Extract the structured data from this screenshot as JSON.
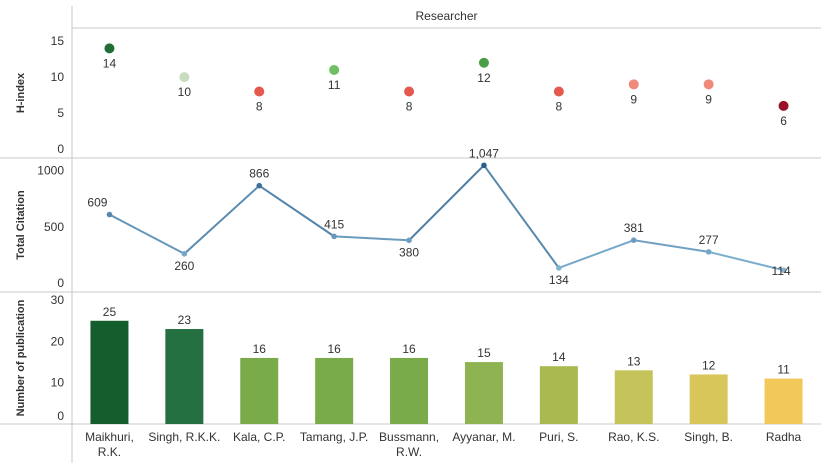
{
  "chart_data": {
    "type": "combined",
    "header": "Researcher",
    "categories": [
      [
        "Maikhuri,",
        "R.K."
      ],
      [
        "Singh, R.K.K."
      ],
      [
        "Kala, C.P."
      ],
      [
        "Tamang, J.P."
      ],
      [
        "Bussmann,",
        "R.W."
      ],
      [
        "Ayyanar, M."
      ],
      [
        "Puri, S."
      ],
      [
        "Rao, K.S."
      ],
      [
        "Singh, B."
      ],
      [
        "Radha"
      ]
    ],
    "panels": [
      {
        "type": "scatter",
        "ylabel": "H-index",
        "ylim": [
          0,
          16
        ],
        "yticks": [
          0,
          5,
          10,
          15
        ],
        "values": [
          14,
          10,
          8,
          11,
          8,
          12,
          8,
          9,
          9,
          6
        ],
        "labels": [
          "14",
          "10",
          "8",
          "11",
          "8",
          "12",
          "8",
          "9",
          "9",
          "6"
        ],
        "colors": [
          "#1e6e36",
          "#c9dcc0",
          "#e5584d",
          "#6fbf63",
          "#e5584d",
          "#4a9e47",
          "#e5584d",
          "#ef8a7a",
          "#ef8a7a",
          "#98122a"
        ]
      },
      {
        "type": "line",
        "ylabel": "Total Citation",
        "ylim": [
          0,
          1050
        ],
        "yticks": [
          0,
          500,
          1000
        ],
        "values": [
          609,
          260,
          866,
          415,
          380,
          1047,
          134,
          381,
          277,
          114
        ],
        "labels": [
          "609",
          "260",
          "866",
          "415",
          "380",
          "1,047",
          "134",
          "381",
          "277",
          "114"
        ]
      },
      {
        "type": "bar",
        "ylabel": "Number of publication",
        "ylim": [
          0,
          31
        ],
        "yticks": [
          0,
          10,
          20,
          30
        ],
        "values": [
          25,
          23,
          16,
          16,
          16,
          15,
          14,
          13,
          12,
          11
        ],
        "labels": [
          "25",
          "23",
          "16",
          "16",
          "16",
          "15",
          "14",
          "13",
          "12",
          "11"
        ],
        "colors": [
          "#145e2e",
          "#247040",
          "#7aab4a",
          "#7aab4a",
          "#7aab4a",
          "#8fb352",
          "#a9b94f",
          "#c4c45a",
          "#d8c65a",
          "#f2c85a"
        ]
      }
    ]
  }
}
